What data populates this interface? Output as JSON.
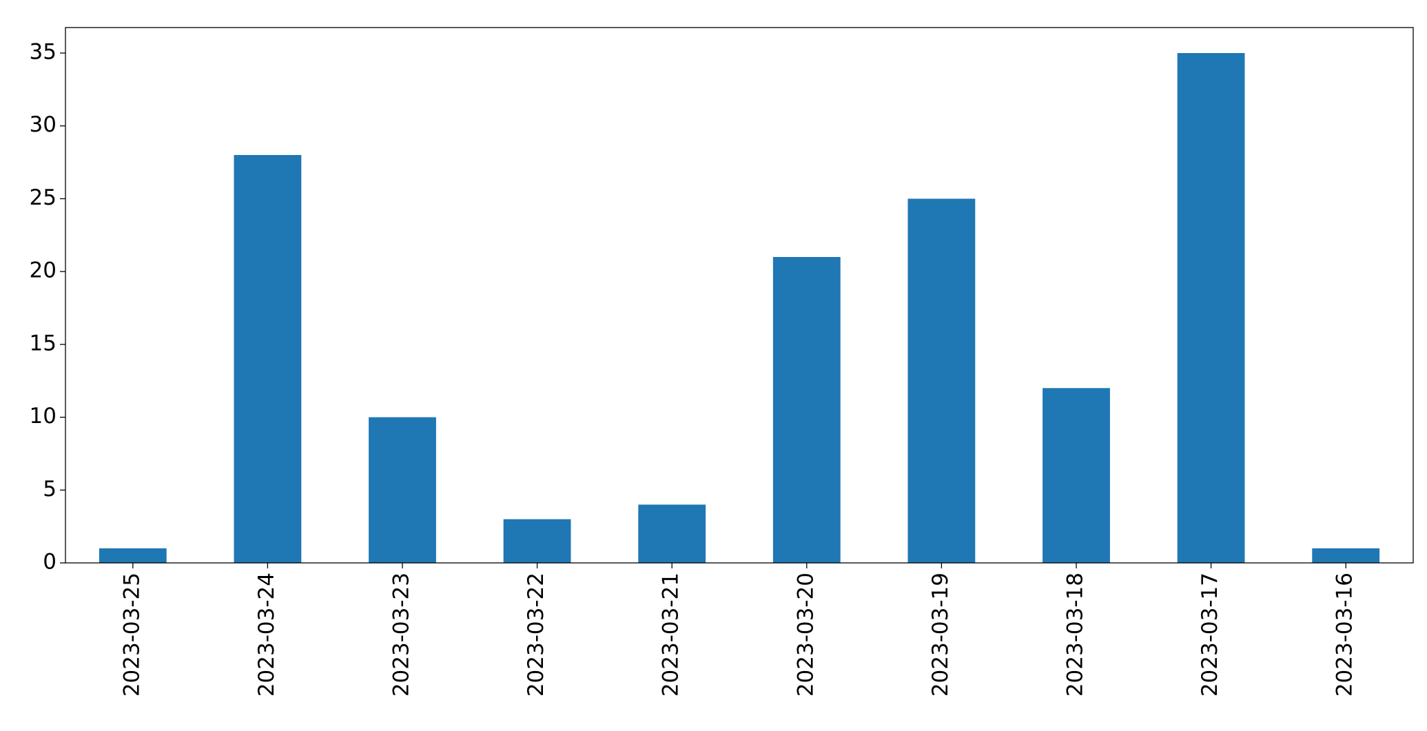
{
  "chart_data": {
    "type": "bar",
    "categories": [
      "2023-03-25",
      "2023-03-24",
      "2023-03-23",
      "2023-03-22",
      "2023-03-21",
      "2023-03-20",
      "2023-03-19",
      "2023-03-18",
      "2023-03-17",
      "2023-03-16"
    ],
    "values": [
      1,
      28,
      10,
      3,
      4,
      21,
      25,
      12,
      35,
      1
    ],
    "color": "#1f77b4",
    "ylim": [
      0,
      36.75
    ],
    "yticks": [
      0,
      5,
      10,
      15,
      20,
      25,
      30,
      35
    ],
    "grid": false
  }
}
